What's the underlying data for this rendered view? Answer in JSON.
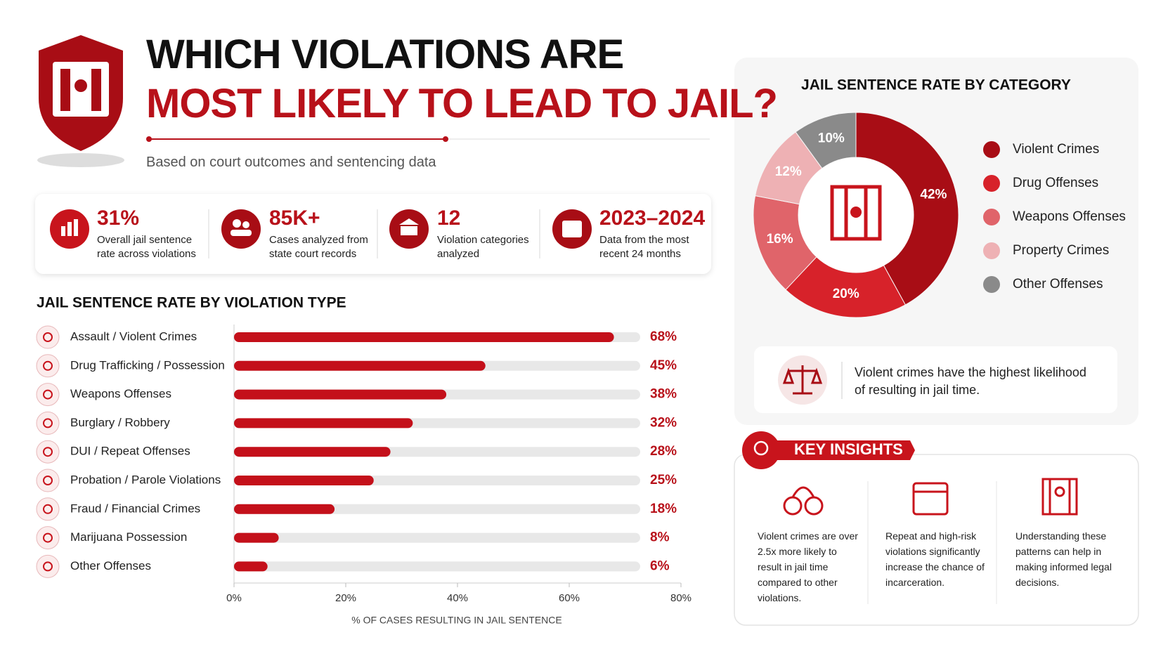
{
  "header": {
    "title_line1": "WHICH VIOLATIONS ARE",
    "title_line2": "MOST LIKELY TO LEAD TO JAIL?",
    "subtitle": "Based on court outcomes and sentencing data"
  },
  "stats": [
    {
      "value": "31%",
      "label": "Overall jail sentence rate across violations"
    },
    {
      "value": "85K+",
      "label": "Cases analyzed from state court records"
    },
    {
      "value": "12",
      "label": "Violation categories analyzed"
    },
    {
      "value": "2023–2024",
      "label": "Data from the most recent 24 months"
    }
  ],
  "chart_data": [
    {
      "type": "hbar",
      "title": "JAIL SENTENCE RATE BY VIOLATION TYPE",
      "x_label": "% OF CASES RESULTING IN JAIL SENTENCE",
      "categories": [
        "Assault / Violent Crimes",
        "Drug Trafficking / Possession",
        "Weapons Offenses",
        "Burglary / Robbery",
        "DUI / Repeat Offenses",
        "Probation / Parole Violations",
        "Fraud / Financial Crimes",
        "Marijuana Possession",
        "Other Offenses"
      ],
      "values": [
        68,
        45,
        38,
        32,
        28,
        25,
        18,
        8,
        6
      ],
      "value_labels": [
        "68%",
        "45%",
        "38%",
        "32%",
        "28%",
        "25%",
        "18%",
        "8%",
        "6%"
      ],
      "color": "#c4101a",
      "xlim": [
        0,
        80
      ],
      "xticks": [
        {
          "value": 0,
          "label": "0%"
        },
        {
          "value": 20,
          "label": "20%"
        },
        {
          "value": 40,
          "label": "40%"
        },
        {
          "value": 60,
          "label": "60%"
        },
        {
          "value": 80,
          "label": "80%"
        }
      ]
    },
    {
      "type": "pie",
      "title": "JAIL SENTENCE RATE BY CATEGORY",
      "legend": "right",
      "categories": [
        "Violent Crimes",
        "Drug Offenses",
        "Weapons Offenses",
        "Property Crimes",
        "Other Offenses"
      ],
      "values": [
        42,
        20,
        16,
        12,
        10
      ],
      "value_labels": [
        "42%",
        "20%",
        "16%",
        "12%",
        "10%"
      ],
      "colors": [
        "#a80d15",
        "#d7222a",
        "#e0646a",
        "#eeb1b4",
        "#8a8a8a"
      ]
    }
  ],
  "callout": "Violent crimes have the highest likelihood of resulting in jail time.",
  "key_insights": {
    "title": "KEY INSIGHTS",
    "items": [
      "Violent crimes are over 2.5x more likely to result in jail time compared to other violations.",
      "Repeat and high-risk violations significantly increase the chance of incarceration.",
      "Understanding these patterns can help in making informed legal decisions."
    ]
  }
}
